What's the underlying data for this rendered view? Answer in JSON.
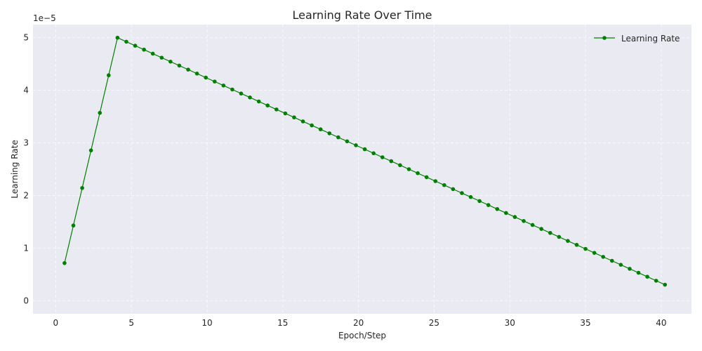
{
  "chart_data": {
    "type": "line",
    "title": "Learning Rate Over Time",
    "xlabel": "Epoch/Step",
    "ylabel": "Learning Rate",
    "y_offset_label": "1e−5",
    "xlim": [
      -1.5,
      42.0
    ],
    "ylim": [
      -0.25,
      5.25
    ],
    "x_ticks": [
      0,
      5,
      10,
      15,
      20,
      25,
      30,
      35,
      40
    ],
    "x_tick_labels": [
      "0",
      "5",
      "10",
      "15",
      "20",
      "25",
      "30",
      "35",
      "40"
    ],
    "y_ticks": [
      0,
      1,
      2,
      3,
      4,
      5
    ],
    "y_tick_labels": [
      "0",
      "1",
      "2",
      "3",
      "4",
      "5"
    ],
    "grid": true,
    "legend": {
      "placement": "top-right"
    },
    "series": [
      {
        "name": "Learning Rate",
        "color": "#008000",
        "marker": "circle",
        "x": [
          0.583,
          1.167,
          1.75,
          2.333,
          2.917,
          3.5,
          4.083,
          4.667,
          5.25,
          5.833,
          6.417,
          7.0,
          7.583,
          8.167,
          8.75,
          9.333,
          9.917,
          10.5,
          11.083,
          11.667,
          12.25,
          12.833,
          13.417,
          14.0,
          14.583,
          15.167,
          15.75,
          16.333,
          16.917,
          17.5,
          18.083,
          18.667,
          19.25,
          19.833,
          20.417,
          21.0,
          21.583,
          22.167,
          22.75,
          23.333,
          23.917,
          24.5,
          25.083,
          25.667,
          26.25,
          26.833,
          27.417,
          28.0,
          28.583,
          29.167,
          29.75,
          30.333,
          30.917,
          31.5,
          32.083,
          32.667,
          33.25,
          33.833,
          34.417,
          35.0,
          35.583,
          36.167,
          36.75,
          37.333,
          37.917,
          38.5,
          39.083,
          39.667,
          40.25
        ],
        "y": [
          0.714,
          1.429,
          2.143,
          2.857,
          3.571,
          4.286,
          5.0,
          4.924,
          4.848,
          4.773,
          4.697,
          4.621,
          4.545,
          4.47,
          4.394,
          4.318,
          4.242,
          4.167,
          4.091,
          4.015,
          3.939,
          3.864,
          3.788,
          3.712,
          3.636,
          3.561,
          3.485,
          3.409,
          3.333,
          3.258,
          3.182,
          3.106,
          3.03,
          2.955,
          2.879,
          2.803,
          2.727,
          2.652,
          2.576,
          2.5,
          2.424,
          2.348,
          2.273,
          2.197,
          2.121,
          2.045,
          1.97,
          1.894,
          1.818,
          1.742,
          1.667,
          1.591,
          1.515,
          1.439,
          1.364,
          1.288,
          1.212,
          1.136,
          1.061,
          0.985,
          0.909,
          0.833,
          0.758,
          0.682,
          0.606,
          0.53,
          0.455,
          0.379,
          0.303
        ]
      }
    ]
  }
}
